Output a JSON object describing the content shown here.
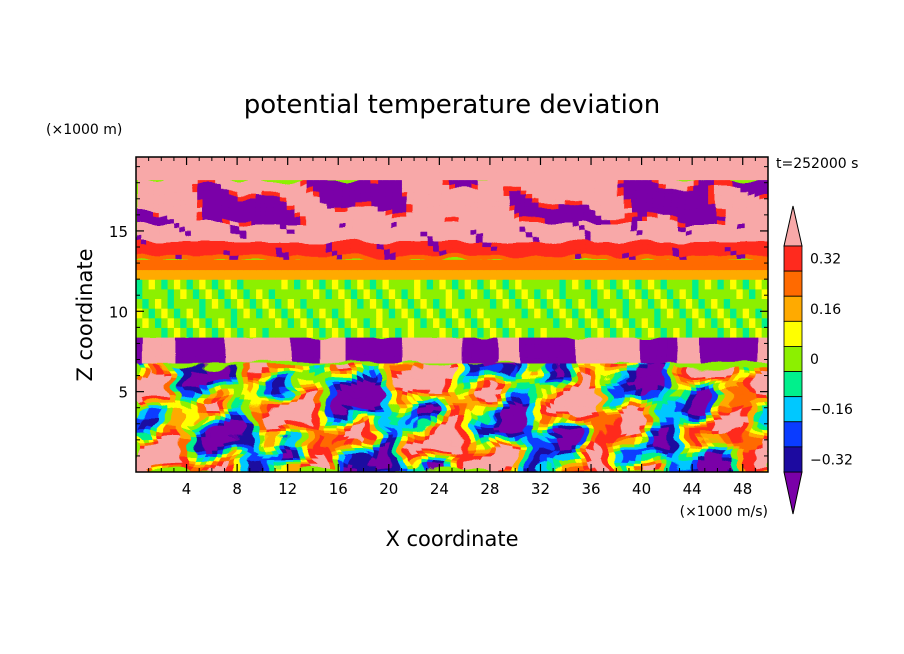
{
  "chart_data": {
    "type": "heatmap",
    "title": "potential temperature deviation",
    "xlabel": "X coordinate",
    "ylabel": "Z coordinate",
    "x_unit": "(×1000 m/s)",
    "y_unit": "(×1000 m)",
    "time_label": "t=252000 s",
    "xlim": [
      0,
      50
    ],
    "ylim": [
      0,
      19.6
    ],
    "x_ticks": [
      "4",
      "8",
      "12",
      "16",
      "20",
      "24",
      "28",
      "32",
      "36",
      "40",
      "44",
      "48"
    ],
    "y_ticks": [
      "5",
      "10",
      "15"
    ],
    "colorbar": {
      "levels": [
        -0.4,
        -0.32,
        -0.24,
        -0.16,
        -0.08,
        0,
        0.08,
        0.16,
        0.24,
        0.32,
        0.4
      ],
      "labels": [
        "0.32",
        "0.16",
        "0",
        "−0.16",
        "−0.32"
      ],
      "colors": [
        "#7a00a8",
        "#1c0aa0",
        "#0a3cff",
        "#00c8ff",
        "#00f08c",
        "#8cf000",
        "#ffff00",
        "#ffaa00",
        "#ff6a00",
        "#ff2a1e",
        "#f8a8a8"
      ],
      "extend": "both"
    },
    "layers": [
      {
        "z_range": [
          18.2,
          19.6
        ],
        "dominant": "positive",
        "values": [
          0.4,
          0.45
        ],
        "note_hidden": true
      },
      {
        "z_range": [
          15.5,
          18.5
        ],
        "dominant": "mixed",
        "values": [
          -0.45,
          0.45
        ]
      },
      {
        "z_range": [
          13.2,
          15.2
        ],
        "dominant": "positive",
        "values": [
          0.15,
          0.4
        ]
      },
      {
        "z_range": [
          12,
          13.2
        ],
        "dominant": "positive",
        "values": [
          0.08,
          0.2
        ]
      },
      {
        "z_range": [
          8.4,
          12
        ],
        "dominant": "neutral",
        "values": [
          -0.08,
          0.08
        ]
      },
      {
        "z_range": [
          6.8,
          8.4
        ],
        "dominant": "mixed",
        "values": [
          -0.45,
          0.45
        ]
      },
      {
        "z_range": [
          0,
          6.8
        ],
        "dominant": "turbulent",
        "values": [
          -0.45,
          0.45
        ]
      }
    ]
  }
}
